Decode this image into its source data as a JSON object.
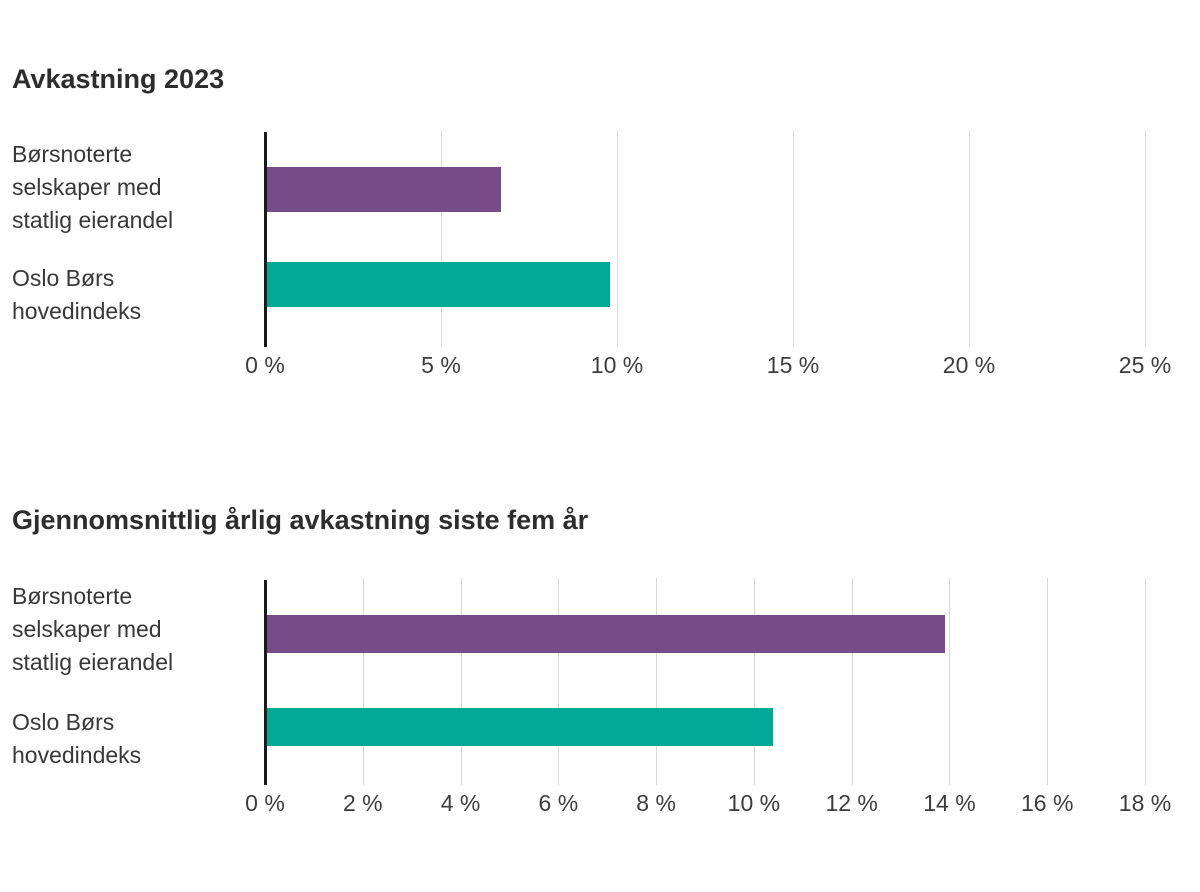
{
  "page": {
    "background": "#ffffff"
  },
  "colors": {
    "bar_state_owned": "#764C88",
    "bar_oslo_bors": "#00AA96",
    "gridline": "#D9D9D9",
    "axis": "#1A1A1A",
    "title_text": "#2D2D2D",
    "label_text": "#383838"
  },
  "chart_data": [
    {
      "type": "bar",
      "orientation": "horizontal",
      "title": "Avkastning 2023",
      "categories": [
        "Børsnoterte\nselskaper med\nstatlig eierandel",
        "Oslo Børs\nhovedindeks"
      ],
      "values": [
        6.7,
        9.8
      ],
      "unit": "%",
      "xlim": [
        0,
        25
      ],
      "ticks": [
        0,
        5,
        10,
        15,
        20,
        25
      ],
      "tick_labels": [
        "0 %",
        "5 %",
        "10 %",
        "15 %",
        "20 %",
        "25 %"
      ],
      "bar_colors": [
        "#764C88",
        "#00AA96"
      ],
      "grid": true,
      "legend_position": "none"
    },
    {
      "type": "bar",
      "orientation": "horizontal",
      "title": "Gjennomsnittlig årlig avkastning siste fem år",
      "categories": [
        "Børsnoterte\nselskaper med\nstatlig eierandel",
        "Oslo Børs\nhovedindeks"
      ],
      "values": [
        13.9,
        10.4
      ],
      "unit": "%",
      "xlim": [
        0,
        18
      ],
      "ticks": [
        0,
        2,
        4,
        6,
        8,
        10,
        12,
        14,
        16,
        18
      ],
      "tick_labels": [
        "0 %",
        "2 %",
        "4 %",
        "6 %",
        "8 %",
        "10 %",
        "12 %",
        "14 %",
        "16 %",
        "18 %"
      ],
      "bar_colors": [
        "#764C88",
        "#00AA96"
      ],
      "grid": true,
      "legend_position": "none"
    }
  ]
}
